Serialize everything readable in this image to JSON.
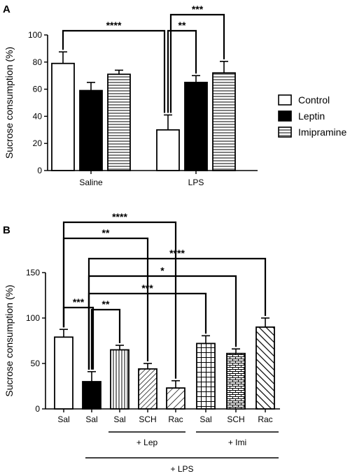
{
  "chart_data": [
    {
      "panel": "A",
      "type": "bar",
      "ylabel": "Sucrose consumption (%)",
      "ylim": [
        0,
        100
      ],
      "yticks": [
        0,
        20,
        40,
        60,
        80,
        100
      ],
      "categories": [
        "Saline",
        "LPS"
      ],
      "series": [
        {
          "name": "Control",
          "pattern": "white",
          "values": [
            79,
            30
          ],
          "errors": [
            8.5,
            11
          ]
        },
        {
          "name": "Leptin",
          "pattern": "black",
          "values": [
            59,
            65
          ],
          "errors": [
            6,
            5
          ]
        },
        {
          "name": "Imipramine",
          "pattern": "hlines",
          "values": [
            71,
            72
          ],
          "errors": [
            3,
            8.5
          ]
        }
      ],
      "legend": {
        "placement": "right"
      },
      "comparisons": [
        {
          "from": "Saline / Control",
          "to": "LPS / Control",
          "label": "****"
        },
        {
          "from": "LPS / Control",
          "to": "LPS / Leptin",
          "label": "**"
        },
        {
          "from": "LPS / Control",
          "to": "LPS / Imipramine",
          "label": "***"
        }
      ]
    },
    {
      "panel": "B",
      "type": "bar",
      "ylabel": "Sucrose consumption (%)",
      "ylim": [
        0,
        150
      ],
      "yticks": [
        0,
        50,
        100,
        150
      ],
      "categories": [
        "Sal",
        "Sal",
        "Sal",
        "SCH",
        "Rac",
        "Sal",
        "SCH",
        "Rac"
      ],
      "values": [
        79,
        30,
        65,
        44,
        23,
        72,
        61,
        90
      ],
      "errors": [
        8.5,
        11,
        5,
        6,
        8,
        8.5,
        5,
        10
      ],
      "patterns": [
        "white",
        "black",
        "vlines",
        "diag",
        "diag-wide",
        "grid",
        "brick",
        "diag-bold"
      ],
      "groups": [
        {
          "label": "+ Lep",
          "from": 2,
          "to": 4
        },
        {
          "label": "+ Imi",
          "from": 5,
          "to": 7
        },
        {
          "label": "+ LPS",
          "from": 1,
          "to": 7
        }
      ],
      "comparisons": [
        {
          "from": 0,
          "to": 4,
          "label": "****"
        },
        {
          "from": 0,
          "to": 3,
          "label": "**"
        },
        {
          "from": 1,
          "to": 7,
          "label": "****"
        },
        {
          "from": 1,
          "to": 6,
          "label": "*"
        },
        {
          "from": 1,
          "to": 5,
          "label": "***"
        },
        {
          "from": 0,
          "to": 1,
          "label": "***"
        },
        {
          "from": 1,
          "to": 2,
          "label": "**"
        }
      ]
    }
  ]
}
